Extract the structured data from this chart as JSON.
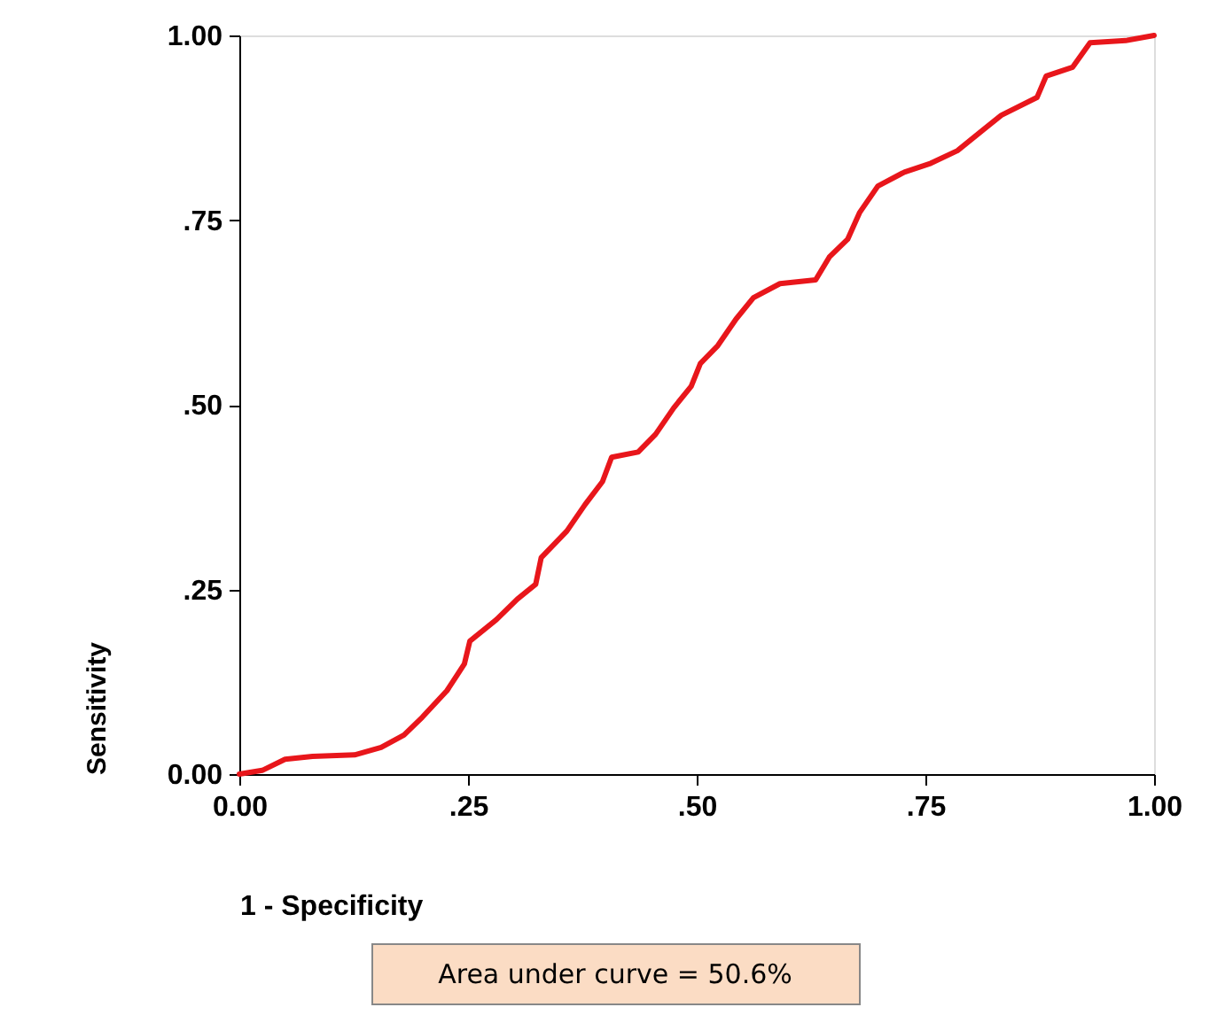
{
  "chart_data": {
    "type": "line",
    "xlabel": "1 - Specificity",
    "ylabel": "Sensitivity",
    "x": [
      0,
      0.025,
      0.05,
      0.08,
      0.126,
      0.155,
      0.18,
      0.2,
      0.227,
      0.246,
      0.252,
      0.281,
      0.304,
      0.324,
      0.33,
      0.358,
      0.378,
      0.397,
      0.407,
      0.436,
      0.455,
      0.475,
      0.494,
      0.504,
      0.523,
      0.543,
      0.562,
      0.591,
      0.63,
      0.645,
      0.665,
      0.678,
      0.698,
      0.727,
      0.756,
      0.785,
      0.814,
      0.833,
      0.872,
      0.882,
      0.911,
      0.93,
      0.969,
      1
    ],
    "series": [
      {
        "color": "#e8161b",
        "values": [
          0,
          0.005,
          0.02,
          0.024,
          0.026,
          0.036,
          0.053,
          0.077,
          0.113,
          0.149,
          0.18,
          0.209,
          0.237,
          0.257,
          0.293,
          0.329,
          0.365,
          0.396,
          0.429,
          0.436,
          0.46,
          0.496,
          0.525,
          0.556,
          0.58,
          0.616,
          0.645,
          0.664,
          0.669,
          0.7,
          0.724,
          0.76,
          0.796,
          0.815,
          0.827,
          0.844,
          0.873,
          0.892,
          0.916,
          0.945,
          0.957,
          0.99,
          0.993,
          1
        ]
      }
    ],
    "xlim": [
      0,
      1
    ],
    "ylim": [
      0,
      1
    ],
    "xticks": [
      {
        "value": 0,
        "label": "0.00"
      },
      {
        "value": 0.25,
        "label": ".25"
      },
      {
        "value": 0.5,
        "label": ".50"
      },
      {
        "value": 0.75,
        "label": ".75"
      },
      {
        "value": 1,
        "label": "1.00"
      }
    ],
    "yticks": [
      {
        "value": 0,
        "label": "0.00"
      },
      {
        "value": 0.25,
        "label": ".25"
      },
      {
        "value": 0.5,
        "label": ".50"
      },
      {
        "value": 0.75,
        "label": ".75"
      },
      {
        "value": 1,
        "label": "1.00"
      }
    ],
    "grid": false,
    "marker": "none",
    "line_style": "solid",
    "annotations": [
      "Area under curve = 50.6%"
    ]
  }
}
